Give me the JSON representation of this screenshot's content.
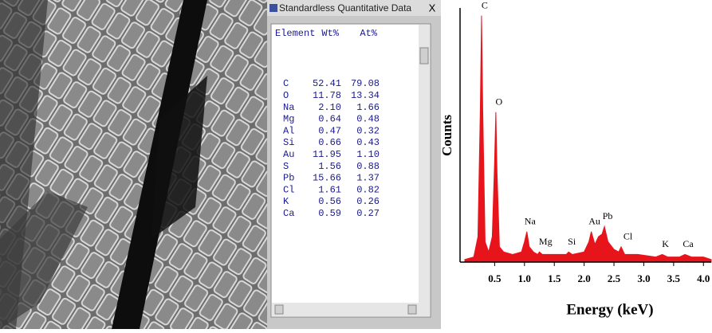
{
  "window": {
    "title": "Standardless Quantitative Data",
    "close": "X"
  },
  "table": {
    "header": [
      "Element",
      "Wt%",
      "At%"
    ],
    "rows": [
      [
        "C",
        "52.41",
        "79.08"
      ],
      [
        "O",
        "11.78",
        "13.34"
      ],
      [
        "Na",
        "2.10",
        "1.66"
      ],
      [
        "Mg",
        "0.64",
        "0.48"
      ],
      [
        "Al",
        "0.47",
        "0.32"
      ],
      [
        "Si",
        "0.66",
        "0.43"
      ],
      [
        "Au",
        "11.95",
        "1.10"
      ],
      [
        "S",
        "1.56",
        "0.88"
      ],
      [
        "Pb",
        "15.66",
        "1.37"
      ],
      [
        "Cl",
        "1.61",
        "0.82"
      ],
      [
        "K",
        "0.56",
        "0.26"
      ],
      [
        "Ca",
        "0.59",
        "0.27"
      ]
    ]
  },
  "chart_data": {
    "type": "area",
    "xlabel": "Energy (keV)",
    "ylabel": "Counts",
    "color": "#e8141c",
    "x": [
      0,
      0.15,
      0.22,
      0.26,
      0.28,
      0.3,
      0.34,
      0.4,
      0.46,
      0.5,
      0.52,
      0.54,
      0.58,
      0.65,
      0.8,
      0.95,
      1.0,
      1.04,
      1.08,
      1.15,
      1.22,
      1.25,
      1.3,
      1.5,
      1.7,
      1.74,
      1.8,
      2.0,
      2.08,
      2.12,
      2.18,
      2.24,
      2.3,
      2.34,
      2.4,
      2.5,
      2.58,
      2.62,
      2.68,
      2.9,
      3.2,
      3.31,
      3.4,
      3.6,
      3.69,
      3.8,
      4.0,
      4.13
    ],
    "values": [
      1,
      2,
      10,
      60,
      97,
      60,
      8,
      4,
      10,
      40,
      59,
      35,
      6,
      4,
      3,
      4,
      8,
      12,
      6,
      4,
      3,
      4,
      3,
      3,
      3,
      4,
      3,
      4,
      8,
      12,
      7,
      10,
      11,
      14,
      8,
      5,
      4,
      6,
      3,
      3,
      2,
      3,
      2,
      2,
      3,
      2,
      2,
      1
    ],
    "xlim": [
      -0.08,
      4.13
    ],
    "ylim": [
      0,
      100
    ],
    "xticks": [
      0.5,
      {
        "value": 1,
        "label": "1.0"
      },
      1.5,
      {
        "value": 2,
        "label": "2.0"
      },
      2.5,
      {
        "value": 3,
        "label": "3.0"
      },
      3.5,
      {
        "value": 4,
        "label": "4.0"
      }
    ],
    "annotations": [
      {
        "text": "C",
        "x": 0.28,
        "y": 97
      },
      {
        "text": "O",
        "x": 0.52,
        "y": 59
      },
      {
        "text": "Na",
        "x": 1.04,
        "y": 12
      },
      {
        "text": "Mg",
        "x": 1.3,
        "y": 4
      },
      {
        "text": "Si",
        "x": 1.74,
        "y": 4
      },
      {
        "text": "Au",
        "x": 2.12,
        "y": 12
      },
      {
        "text": "Pb",
        "x": 2.34,
        "y": 14
      },
      {
        "text": "Cl",
        "x": 2.68,
        "y": 6
      },
      {
        "text": "K",
        "x": 3.31,
        "y": 3
      },
      {
        "text": "Ca",
        "x": 3.69,
        "y": 3
      }
    ]
  }
}
